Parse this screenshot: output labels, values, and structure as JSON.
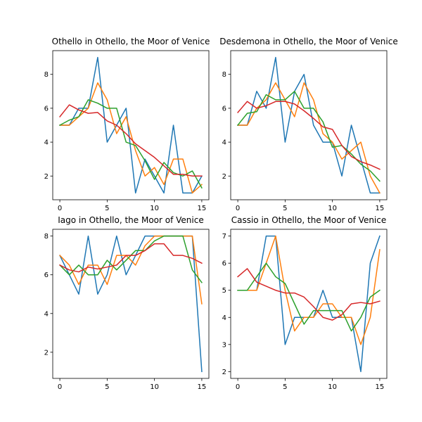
{
  "figure": {
    "colors": [
      "#1f77b4",
      "#ff7f0e",
      "#2ca02c",
      "#d62728"
    ]
  },
  "chart_data": [
    {
      "type": "line",
      "title": "Othello in Othello, the Moor of Venice",
      "x": [
        0,
        1,
        2,
        3,
        4,
        5,
        6,
        7,
        8,
        9,
        10,
        11,
        12,
        13,
        14,
        15
      ],
      "xlim": [
        -0.75,
        15.75
      ],
      "ylim": [
        0.6,
        9.4
      ],
      "xticks": [
        0,
        5,
        10,
        15
      ],
      "yticks": [
        2,
        4,
        6,
        8
      ],
      "series": [
        {
          "color": "#1f77b4",
          "values": [
            5,
            5,
            6,
            6,
            9,
            4,
            5,
            6,
            1,
            3,
            2,
            1,
            5,
            1,
            1,
            2
          ]
        },
        {
          "color": "#ff7f0e",
          "values": [
            5,
            5,
            5.5,
            6,
            7.5,
            6.5,
            4.5,
            5.5,
            3.5,
            2,
            2.5,
            1.5,
            3,
            3,
            1,
            1.5
          ]
        },
        {
          "color": "#2ca02c",
          "values": [
            5,
            5.3,
            5.5,
            6.5,
            6.3,
            6,
            6,
            4,
            3.8,
            2.9,
            1.8,
            2.8,
            2.2,
            2,
            2.3,
            1.3
          ]
        },
        {
          "color": "#d62728",
          "values": [
            5.5,
            6.2,
            5.9,
            5.7,
            5.75,
            5.25,
            5,
            4.5,
            3.9,
            3.5,
            3.1,
            2.6,
            2.1,
            2.1,
            2,
            2
          ]
        }
      ]
    },
    {
      "type": "line",
      "title": "Desdemona in Othello, the Moor of Venice",
      "x": [
        0,
        1,
        2,
        3,
        4,
        5,
        6,
        7,
        8,
        9,
        10,
        11,
        12,
        13,
        14,
        15
      ],
      "xlim": [
        -0.75,
        15.75
      ],
      "ylim": [
        0.6,
        9.4
      ],
      "xticks": [
        0,
        5,
        10,
        15
      ],
      "yticks": [
        2,
        4,
        6,
        8
      ],
      "series": [
        {
          "color": "#1f77b4",
          "values": [
            5,
            5,
            7,
            6,
            9,
            4,
            7,
            8,
            5,
            4,
            4,
            2,
            5,
            3,
            1,
            1
          ]
        },
        {
          "color": "#ff7f0e",
          "values": [
            5,
            5,
            6,
            6.5,
            7.5,
            6.5,
            5.5,
            7.5,
            6.5,
            4.5,
            4,
            3,
            3.5,
            4,
            2,
            1
          ]
        },
        {
          "color": "#2ca02c",
          "values": [
            5,
            5.7,
            5.8,
            6.8,
            6.5,
            6.5,
            7,
            6,
            6,
            5.2,
            3.7,
            3.8,
            3.3,
            2.7,
            2.3,
            1.7
          ]
        },
        {
          "color": "#d62728",
          "values": [
            5.75,
            6.4,
            6,
            6.15,
            6.4,
            6.4,
            6.25,
            5.85,
            5.4,
            4.9,
            4.75,
            3.8,
            3.15,
            2.85,
            2.65,
            2.4
          ]
        }
      ]
    },
    {
      "type": "line",
      "title": "Iago in Othello, the Moor of Venice",
      "x": [
        0,
        1,
        2,
        3,
        4,
        5,
        6,
        7,
        8,
        9,
        10,
        11,
        12,
        13,
        14,
        15
      ],
      "xlim": [
        -0.75,
        15.75
      ],
      "ylim": [
        0.65,
        8.35
      ],
      "xticks": [
        0,
        5,
        10,
        15
      ],
      "yticks": [
        2,
        4,
        6,
        8
      ],
      "series": [
        {
          "color": "#1f77b4",
          "values": [
            7,
            6,
            5,
            8,
            5,
            6,
            8,
            6,
            7,
            8,
            8,
            8,
            8,
            8,
            8,
            1
          ]
        },
        {
          "color": "#ff7f0e",
          "values": [
            7,
            6.5,
            5.5,
            6.5,
            6.5,
            5.5,
            7,
            7,
            6.5,
            7.5,
            8,
            8,
            8,
            8,
            8,
            4.5
          ]
        },
        {
          "color": "#2ca02c",
          "values": [
            6.5,
            6,
            6.5,
            6,
            6,
            6.75,
            6.25,
            6.75,
            7.25,
            7.25,
            7.75,
            8,
            8,
            8,
            6.25,
            5.6
          ]
        },
        {
          "color": "#d62728",
          "values": [
            6.5,
            6.25,
            6.15,
            6.4,
            6.3,
            6.4,
            6.5,
            7,
            7,
            7.25,
            7.6,
            7.6,
            7,
            7,
            6.85,
            6.6
          ]
        }
      ]
    },
    {
      "type": "line",
      "title": "Cassio in Othello, the Moor of Venice",
      "x": [
        0,
        1,
        2,
        3,
        4,
        5,
        6,
        7,
        8,
        9,
        10,
        11,
        12,
        13,
        14,
        15
      ],
      "xlim": [
        -0.75,
        15.75
      ],
      "ylim": [
        1.75,
        7.25
      ],
      "xticks": [
        0,
        5,
        10,
        15
      ],
      "yticks": [
        2,
        3,
        4,
        5,
        6,
        7
      ],
      "series": [
        {
          "color": "#1f77b4",
          "values": [
            5,
            5,
            5,
            7,
            7,
            3,
            4,
            4,
            4,
            5,
            4,
            4,
            4,
            2,
            6,
            7
          ]
        },
        {
          "color": "#ff7f0e",
          "values": [
            5,
            5,
            5,
            6,
            7,
            5,
            3.5,
            4,
            4,
            4.5,
            4.5,
            4,
            4,
            3,
            4,
            6.5
          ]
        },
        {
          "color": "#2ca02c",
          "values": [
            5,
            5,
            5.5,
            6,
            5.5,
            5.25,
            4.5,
            3.75,
            4.25,
            4.25,
            4.25,
            4.25,
            3.5,
            4,
            4.75,
            5
          ]
        },
        {
          "color": "#d62728",
          "values": [
            5.5,
            5.8,
            5.3,
            5.15,
            5,
            4.9,
            4.9,
            4.75,
            4.4,
            4,
            3.9,
            4.1,
            4.5,
            4.55,
            4.5,
            4.6
          ]
        }
      ]
    }
  ]
}
